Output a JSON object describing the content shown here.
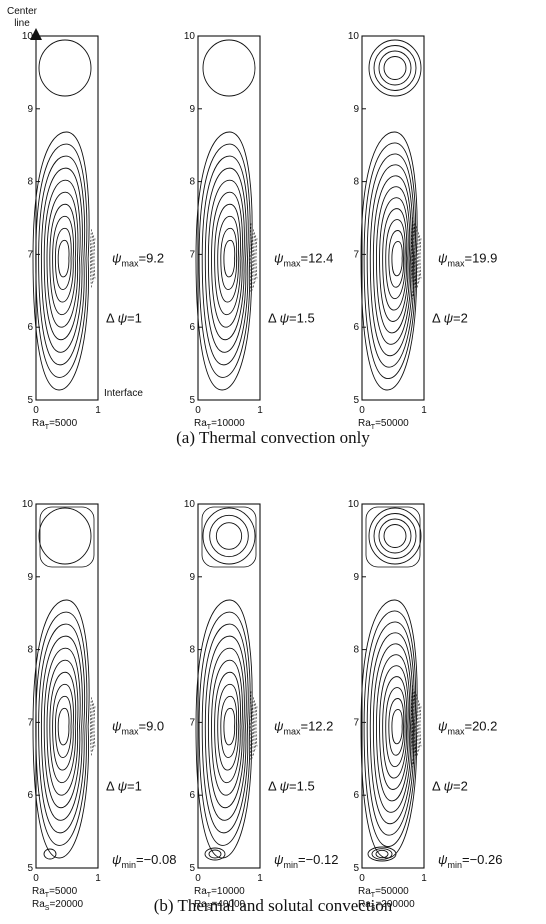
{
  "axis": {
    "center_line": [
      "Center",
      "line"
    ],
    "y_ticks": [
      "5",
      "6",
      "7",
      "8",
      "9",
      "10"
    ],
    "x_ticks": [
      "0",
      "1"
    ],
    "interface_label": "Interface"
  },
  "colors": {
    "ink": "#111111",
    "background": "#ffffff"
  },
  "row_a": {
    "caption": "(a) Thermal convection only",
    "panels": [
      {
        "psi_max": "=9.2",
        "delta_psi": "=1",
        "psi_min": null,
        "ra": [
          "5000"
        ],
        "ras": []
      },
      {
        "psi_max": "=12.4",
        "delta_psi": "=1.5",
        "psi_min": null,
        "ra": [
          "10000"
        ],
        "ras": []
      },
      {
        "psi_max": "=19.9",
        "delta_psi": "=2",
        "psi_min": null,
        "ra": [
          "50000"
        ],
        "ras": []
      }
    ]
  },
  "row_b": {
    "caption": "(b) Thermal and solutal convection",
    "panels": [
      {
        "psi_max": "=9.0",
        "delta_psi": "=1",
        "psi_min": "=−0.08",
        "ra": [
          "5000"
        ],
        "ras": [
          "20000"
        ]
      },
      {
        "psi_max": "=12.2",
        "delta_psi": "=1.5",
        "psi_min": "=−0.12",
        "ra": [
          "10000"
        ],
        "ras": [
          "40000"
        ]
      },
      {
        "psi_max": "=20.2",
        "delta_psi": "=2",
        "psi_min": "=−0.26",
        "ra": [
          "50000"
        ],
        "ras": [
          "200000"
        ]
      }
    ]
  },
  "symbols": {
    "psi": "ψ",
    "delta": "Δ",
    "ra": "Ra",
    "sub_t": "T",
    "sub_s": "S",
    "sub_max": "max",
    "sub_min": "min"
  }
}
